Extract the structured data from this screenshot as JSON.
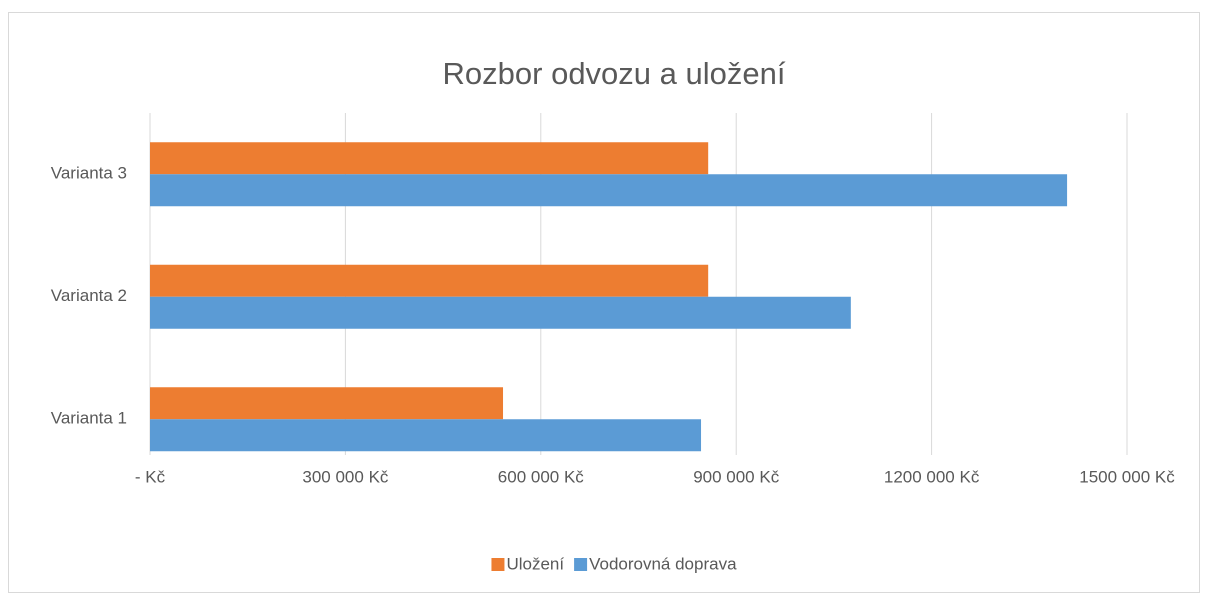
{
  "chart_data": {
    "type": "bar",
    "orientation": "horizontal",
    "title": "Rozbor odvozu a uložení",
    "categories": [
      "Varianta 1",
      "Varianta 2",
      "Varianta 3"
    ],
    "series": [
      {
        "name": "Uložení",
        "color": "#ed7d31",
        "values": [
          542000,
          857000,
          857000
        ]
      },
      {
        "name": "Vodorovná doprava",
        "color": "#5b9bd5",
        "values": [
          846000,
          1076000,
          1408000
        ]
      }
    ],
    "xlim": [
      0,
      1500000
    ],
    "xticks": [
      {
        "value": 0,
        "label": "-   Kč"
      },
      {
        "value": 300000,
        "label": "300 000 Kč"
      },
      {
        "value": 600000,
        "label": "600 000 Kč"
      },
      {
        "value": 900000,
        "label": "900 000 Kč"
      },
      {
        "value": 1200000,
        "label": "1200 000 Kč"
      },
      {
        "value": 1500000,
        "label": "1500 000 Kč"
      }
    ],
    "grid": true,
    "legend": "bottom"
  }
}
